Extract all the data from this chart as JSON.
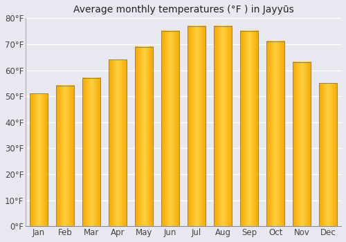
{
  "title": "Average monthly temperatures (°F ) in Jayyūs",
  "months": [
    "Jan",
    "Feb",
    "Mar",
    "Apr",
    "May",
    "Jun",
    "Jul",
    "Aug",
    "Sep",
    "Oct",
    "Nov",
    "Dec"
  ],
  "values": [
    51,
    54,
    57,
    64,
    69,
    75,
    77,
    77,
    75,
    71,
    63,
    55
  ],
  "ylim": [
    0,
    80
  ],
  "yticks": [
    0,
    10,
    20,
    30,
    40,
    50,
    60,
    70,
    80
  ],
  "ytick_labels": [
    "0°F",
    "10°F",
    "20°F",
    "30°F",
    "40°F",
    "50°F",
    "60°F",
    "70°F",
    "80°F"
  ],
  "background_color": "#e8e8f0",
  "plot_bg_color": "#e8e8f0",
  "grid_color": "#ffffff",
  "bar_edge_color": "#888866",
  "gradient_left": "#F5A800",
  "gradient_center": "#FFD040",
  "gradient_right": "#F5A800",
  "bar_width": 0.7,
  "title_fontsize": 10,
  "tick_fontsize": 8.5,
  "figsize": [
    5.0,
    3.5
  ],
  "dpi": 100
}
